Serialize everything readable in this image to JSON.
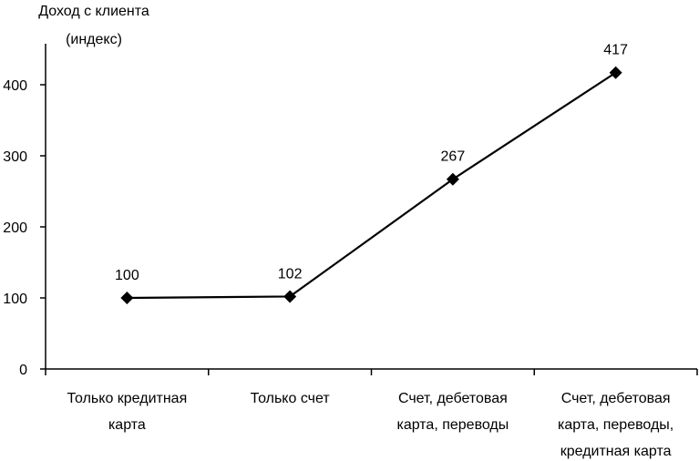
{
  "chart_data": {
    "type": "line",
    "title": "",
    "ylabel": [
      "Доход с клиента",
      "(индекс)"
    ],
    "xlabel": "",
    "categories": [
      [
        "Только кредитная",
        "карта"
      ],
      [
        "Только счет"
      ],
      [
        "Счет, дебетовая",
        "карта, переводы"
      ],
      [
        "Счет, дебетовая",
        "карта, переводы,",
        "кредитная карта"
      ]
    ],
    "values": [
      100,
      102,
      267,
      417
    ],
    "data_labels": [
      "100",
      "102",
      "267",
      "417"
    ],
    "yticks": [
      0,
      100,
      200,
      300,
      400
    ],
    "ylim": [
      0,
      450
    ],
    "grid": false,
    "marker": "diamond",
    "line_color": "#000000"
  }
}
